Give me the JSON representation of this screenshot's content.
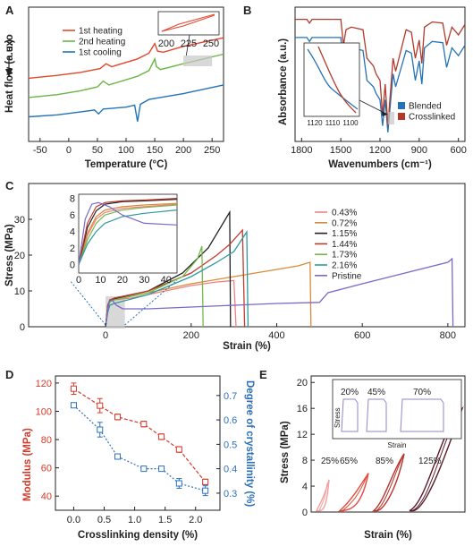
{
  "chart_data": [
    {
      "panel": "A",
      "type": "line",
      "xlabel": "Temperature (°C)",
      "ylabel": "Heat flow (a.u.) exo",
      "xlim": [
        -70,
        270
      ],
      "xticks": [
        -50,
        0,
        50,
        100,
        150,
        200,
        250
      ],
      "series": [
        {
          "name": "1st  heating",
          "color": "#e2472d",
          "x": [
            -70,
            -20,
            20,
            55,
            65,
            75,
            120,
            140,
            150,
            155,
            165,
            200,
            270
          ],
          "y": [
            0.3,
            0.33,
            0.36,
            0.4,
            0.45,
            0.42,
            0.5,
            0.56,
            0.66,
            0.58,
            0.57,
            0.63,
            0.72
          ]
        },
        {
          "name": "2nd heating",
          "color": "#6ab446",
          "x": [
            -70,
            -20,
            20,
            50,
            60,
            70,
            120,
            140,
            150,
            153,
            160,
            200,
            270
          ],
          "y": [
            0.1,
            0.13,
            0.17,
            0.21,
            0.27,
            0.23,
            0.32,
            0.38,
            0.5,
            0.42,
            0.39,
            0.45,
            0.55
          ]
        },
        {
          "name": "1st  cooling",
          "color": "#2473b6",
          "x": [
            -70,
            -20,
            20,
            45,
            52,
            60,
            100,
            115,
            120,
            125,
            140,
            200,
            270
          ],
          "y": [
            -0.1,
            -0.08,
            -0.05,
            -0.03,
            -0.07,
            -0.02,
            0.0,
            0.02,
            -0.15,
            0.03,
            0.08,
            0.14,
            0.23
          ]
        }
      ],
      "inset": {
        "xticks": [
          200,
          225,
          250
        ]
      }
    },
    {
      "panel": "B",
      "type": "line",
      "xlabel": "Wavenumbers (cm⁻¹)",
      "ylabel": "Absorbance (a.u.)",
      "xlim": [
        1850,
        550
      ],
      "xticks": [
        1800,
        1500,
        1200,
        900,
        600
      ],
      "series": [
        {
          "name": "Blended",
          "color": "#2473b6",
          "x": [
            1850,
            1760,
            1740,
            1720,
            1600,
            1500,
            1480,
            1460,
            1420,
            1330,
            1300,
            1250,
            1230,
            1200,
            1180,
            1160,
            1140,
            1100,
            1080,
            1000,
            960,
            930,
            900,
            880,
            860,
            800,
            720,
            690,
            650,
            600,
            550
          ],
          "y": [
            0.78,
            0.78,
            0.75,
            0.78,
            0.78,
            0.78,
            0.55,
            0.68,
            0.7,
            0.68,
            0.45,
            0.4,
            0.35,
            0.3,
            0.1,
            0.3,
            0.05,
            0.5,
            0.4,
            0.68,
            0.66,
            0.45,
            0.6,
            0.42,
            0.7,
            0.75,
            0.74,
            0.55,
            0.7,
            0.64,
            0.72
          ]
        },
        {
          "name": "Crosslinked",
          "color": "#b23a2a",
          "x": [
            1850,
            1760,
            1740,
            1720,
            1600,
            1500,
            1480,
            1460,
            1420,
            1330,
            1300,
            1250,
            1230,
            1200,
            1180,
            1160,
            1140,
            1100,
            1080,
            1000,
            960,
            930,
            900,
            880,
            860,
            800,
            720,
            690,
            650,
            600,
            550
          ],
          "y": [
            0.92,
            0.92,
            0.89,
            0.92,
            0.92,
            0.92,
            0.72,
            0.84,
            0.86,
            0.84,
            0.62,
            0.56,
            0.5,
            0.45,
            0.18,
            0.42,
            0.1,
            0.62,
            0.52,
            0.84,
            0.82,
            0.62,
            0.76,
            0.58,
            0.86,
            0.9,
            0.89,
            0.72,
            0.86,
            0.8,
            0.88
          ]
        }
      ],
      "inset": {
        "xticks": [
          1120,
          1110,
          1100
        ]
      }
    },
    {
      "panel": "C",
      "type": "line",
      "xlabel": "Strain (%)",
      "ylabel": "Stress (MPa)",
      "xlim": [
        -180,
        840
      ],
      "ylim": [
        0,
        40
      ],
      "xticks": [
        0,
        200,
        400,
        600,
        800
      ],
      "yticks": [
        0,
        10,
        20,
        30
      ],
      "series": [
        {
          "name": "0.43%",
          "color": "#f08080",
          "x": [
            0,
            5,
            10,
            20,
            60,
            120,
            200,
            260,
            290,
            300,
            305
          ],
          "y": [
            0,
            5.5,
            7,
            7.5,
            8,
            9.5,
            11.5,
            12.5,
            12.8,
            12.9,
            0
          ]
        },
        {
          "name": "0.72%",
          "color": "#d98a3a",
          "x": [
            0,
            5,
            10,
            20,
            100,
            200,
            300,
            400,
            450,
            478,
            480
          ],
          "y": [
            0,
            5,
            7,
            7.5,
            9.5,
            12,
            14,
            16,
            17,
            18,
            0
          ]
        },
        {
          "name": "1.15%",
          "color": "#222222",
          "x": [
            0,
            5,
            10,
            20,
            100,
            180,
            240,
            270,
            290,
            292
          ],
          "y": [
            0,
            6,
            7.5,
            7.8,
            10,
            15,
            22,
            28,
            32,
            0
          ]
        },
        {
          "name": "1.44%",
          "color": "#c0392b",
          "x": [
            0,
            5,
            10,
            20,
            100,
            200,
            260,
            290,
            320,
            325
          ],
          "y": [
            0,
            6,
            7.5,
            8,
            10,
            15,
            20,
            23,
            27,
            0
          ]
        },
        {
          "name": "1.73%",
          "color": "#76b94a",
          "x": [
            0,
            5,
            10,
            20,
            100,
            180,
            215,
            225,
            228
          ],
          "y": [
            0,
            5,
            7,
            7.5,
            9.5,
            14,
            19,
            22.5,
            0
          ]
        },
        {
          "name": "2.16%",
          "color": "#2e9aa3",
          "x": [
            0,
            5,
            10,
            20,
            100,
            200,
            260,
            300,
            330,
            333
          ],
          "y": [
            0,
            4,
            6,
            6.5,
            9,
            14,
            18,
            21,
            26.5,
            0
          ]
        },
        {
          "name": "Pristine",
          "color": "#7b68c8",
          "x": [
            0,
            8,
            15,
            25,
            40,
            100,
            200,
            300,
            400,
            500,
            520,
            600,
            700,
            800,
            810,
            812
          ],
          "y": [
            0,
            7,
            7.5,
            6,
            5,
            5,
            5.5,
            6,
            6.5,
            6.8,
            9.5,
            12,
            15,
            18,
            19,
            0
          ]
        }
      ],
      "inset": {
        "xlim": [
          0,
          45
        ],
        "ylim": [
          -1,
          8.5
        ],
        "xticks": [
          0,
          10,
          20,
          30,
          40
        ],
        "yticks": [
          0,
          2,
          4,
          6,
          8
        ]
      }
    },
    {
      "panel": "D",
      "type": "line",
      "xlabel": "Crosslinking density (%)",
      "ylabel": "Modulus (MPa)",
      "y2label": "Degree of crystallinity (%)",
      "xlim": [
        -0.3,
        2.4
      ],
      "ylim": [
        30,
        125
      ],
      "y2lim": [
        0.23,
        0.78
      ],
      "xticks": [
        0.0,
        0.5,
        1.0,
        1.5,
        2.0
      ],
      "yticks": [
        40,
        60,
        80,
        100,
        120
      ],
      "y2ticks": [
        0.3,
        0.4,
        0.5,
        0.6,
        0.7
      ],
      "series": [
        {
          "name": "Modulus",
          "color": "#d43a2a",
          "axis": "left",
          "x": [
            0,
            0.43,
            0.72,
            1.15,
            1.44,
            1.73,
            2.16
          ],
          "y": [
            116,
            104,
            96,
            91,
            82,
            73,
            50
          ],
          "err": [
            4,
            5,
            2,
            2,
            2,
            2,
            2
          ]
        },
        {
          "name": "Crystallinity",
          "color": "#2e6fb8",
          "axis": "right",
          "x": [
            0,
            0.43,
            0.72,
            1.15,
            1.44,
            1.73,
            2.16
          ],
          "y": [
            0.66,
            0.56,
            0.45,
            0.4,
            0.4,
            0.34,
            0.31
          ],
          "err": [
            0.01,
            0.03,
            0.01,
            0.01,
            0.01,
            0.02,
            0.02
          ]
        }
      ]
    },
    {
      "panel": "E",
      "type": "line",
      "xlabel": "Strain (%)",
      "ylabel": "Stress (MPa)",
      "ylim": [
        0,
        21
      ],
      "yticks": [
        0,
        4,
        8,
        12,
        16,
        20
      ],
      "loops": [
        {
          "label": "25%",
          "color": "#f4a0a0",
          "peak": 5
        },
        {
          "label": "65%",
          "color": "#e34b3b",
          "peak": 6
        },
        {
          "label": "85%",
          "color": "#b9312a",
          "peak": 9
        },
        {
          "label": "125%",
          "color": "#5b1b2a",
          "peak": 16
        }
      ],
      "inset": {
        "xlabel": "Strain",
        "ylabel": "Stress",
        "loops": [
          {
            "label": "20%"
          },
          {
            "label": "45%"
          },
          {
            "label": "70%"
          }
        ]
      }
    }
  ],
  "texts": {
    "a": {
      "letter": "A",
      "ylabel": "Heat flow (a.u.)",
      "exo": "exo"
    },
    "b": {
      "letter": "B"
    },
    "c": {
      "letter": "C"
    },
    "d": {
      "letter": "D"
    },
    "e": {
      "letter": "E"
    }
  }
}
